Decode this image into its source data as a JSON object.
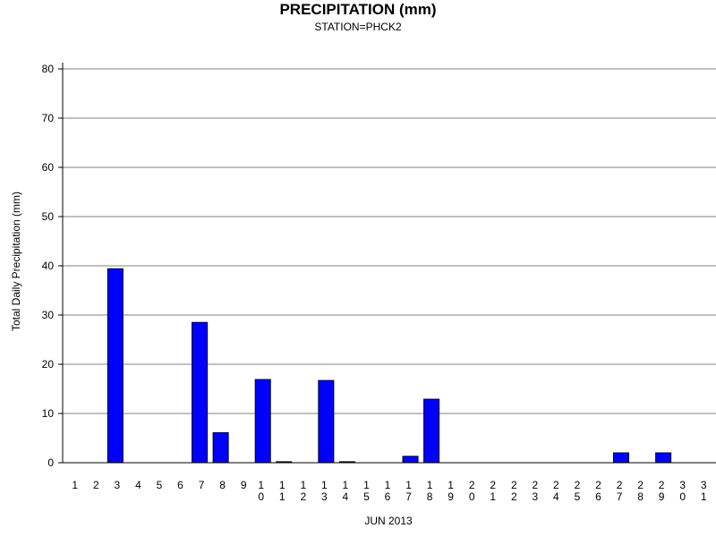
{
  "chart_data": {
    "type": "bar",
    "title": "PRECIPITATION (mm)",
    "subtitle": "STATION=PHCK2",
    "xlabel": "JUN 2013",
    "ylabel": "Total Daily Precipitation (mm)",
    "ylim": [
      0,
      80
    ],
    "yticks": [
      0,
      10,
      20,
      30,
      40,
      50,
      60,
      70,
      80
    ],
    "grid": true,
    "bar_color": "#0000ff",
    "categories": [
      "1",
      "2",
      "3",
      "4",
      "5",
      "6",
      "7",
      "8",
      "9",
      "10",
      "11",
      "12",
      "13",
      "14",
      "15",
      "16",
      "17",
      "18",
      "19",
      "20",
      "21",
      "22",
      "23",
      "24",
      "25",
      "26",
      "27",
      "28",
      "29",
      "30",
      "31"
    ],
    "values": [
      0,
      0,
      39.4,
      0,
      0,
      0,
      28.5,
      6.1,
      0,
      16.9,
      0.2,
      0,
      16.7,
      0.2,
      0,
      0,
      1.3,
      12.9,
      0,
      0,
      0,
      0,
      0,
      0,
      0,
      0,
      2.0,
      0,
      2.0,
      0,
      0
    ]
  }
}
